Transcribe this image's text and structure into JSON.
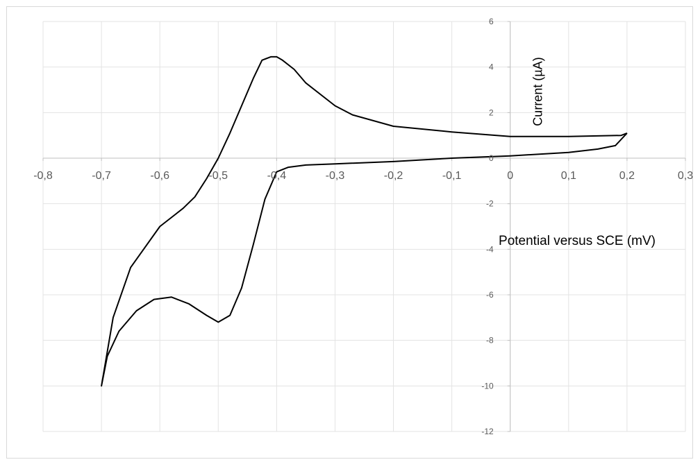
{
  "chart_data": {
    "type": "line",
    "title": "",
    "xlabel": "Potential versus SCE (mV)",
    "ylabel": "Current (µA)",
    "xlim": [
      -0.8,
      0.3
    ],
    "ylim": [
      -12,
      6
    ],
    "grid": true,
    "x_tick_labels": [
      "-0,8",
      "-0,7",
      "-0,6",
      "-0,5",
      "-0,4",
      "-0,3",
      "-0,2",
      "-0,1",
      "0",
      "0,1",
      "0,2",
      "0,3"
    ],
    "y_tick_labels": [
      "-12",
      "-10",
      "-8",
      "-6",
      "-4",
      "-2",
      "0",
      "2",
      "4",
      "6"
    ],
    "series": [
      {
        "line_color": "#000000",
        "x": [
          0.2,
          0.19,
          0.1,
          0.0,
          -0.1,
          -0.2,
          -0.27,
          -0.3,
          -0.35,
          -0.37,
          -0.39,
          -0.4,
          -0.41,
          -0.425,
          -0.44,
          -0.46,
          -0.48,
          -0.5,
          -0.52,
          -0.54,
          -0.56,
          -0.6,
          -0.65,
          -0.68,
          -0.7,
          -0.69,
          -0.67,
          -0.64,
          -0.61,
          -0.58,
          -0.55,
          -0.52,
          -0.5,
          -0.48,
          -0.46,
          -0.44,
          -0.42,
          -0.4,
          -0.38,
          -0.35,
          -0.3,
          -0.2,
          -0.1,
          0.0,
          0.1,
          0.15,
          0.18,
          0.2
        ],
        "y": [
          1.1,
          1.0,
          0.95,
          0.95,
          1.15,
          1.4,
          1.9,
          2.3,
          3.3,
          3.9,
          4.3,
          4.45,
          4.45,
          4.3,
          3.5,
          2.3,
          1.1,
          0.0,
          -0.9,
          -1.7,
          -2.2,
          -3.0,
          -4.8,
          -7.0,
          -10.0,
          -8.7,
          -7.6,
          -6.7,
          -6.2,
          -6.1,
          -6.4,
          -6.9,
          -7.2,
          -6.9,
          -5.7,
          -3.8,
          -1.8,
          -0.6,
          -0.4,
          -0.3,
          -0.25,
          -0.15,
          0.0,
          0.1,
          0.25,
          0.4,
          0.55,
          1.1
        ]
      }
    ]
  }
}
